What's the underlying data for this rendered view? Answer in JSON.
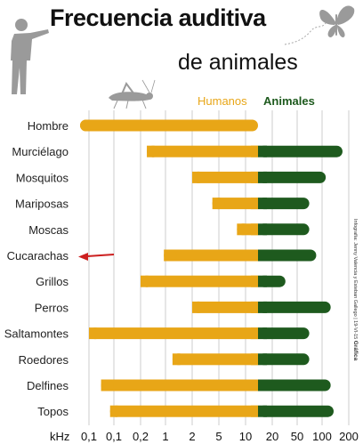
{
  "title": "Frecuencia auditiva",
  "subtitle": "de animales",
  "credit": "Infografía: Jenny Valencia y Esteban Gallego | 19-VI-15",
  "credit_brand": "Gráfica",
  "colors": {
    "humans": "#e8a617",
    "animals": "#1e5a1e",
    "grid": "#cccccc",
    "arrow": "#cc1f1f"
  },
  "icons": [
    "silhouette-man-icon",
    "butterfly-icon",
    "grasshopper-icon",
    "red-arrow-icon"
  ],
  "chart_data": {
    "type": "bar",
    "orientation": "horizontal",
    "xlabel_unit": "kHz",
    "x_ticks": [
      "0,1",
      "0,1",
      "0,2",
      "1",
      "2",
      "5",
      "10",
      "20",
      "50",
      "100",
      "200"
    ],
    "legend": [
      "Humanos",
      "Animales"
    ],
    "legend_position": "top-right",
    "grid": true,
    "highlighted_category": "Cucarachas",
    "categories": [
      "Hombre",
      "Murciélago",
      "Mosquitos",
      "Mariposas",
      "Moscas",
      "Cucarachas",
      "Grillos",
      "Perros",
      "Saltamontes",
      "Roedores",
      "Delfines",
      "Topos"
    ],
    "series": [
      {
        "name": "Humanos",
        "ranges": [
          [
            0.02,
            20
          ],
          [
            0.3,
            20
          ],
          [
            2,
            20
          ],
          [
            4,
            20
          ],
          [
            8,
            20
          ],
          [
            0.9,
            20
          ],
          [
            0.2,
            20
          ],
          [
            2,
            20
          ],
          [
            0.05,
            20
          ],
          [
            1.2,
            20
          ],
          [
            0.07,
            20
          ],
          [
            0.09,
            20
          ]
        ]
      },
      {
        "name": "Animales",
        "ranges": [
          null,
          [
            20,
            170
          ],
          [
            20,
            110
          ],
          [
            20,
            70
          ],
          [
            20,
            70
          ],
          [
            20,
            85
          ],
          [
            20,
            38
          ],
          [
            20,
            125
          ],
          [
            20,
            70
          ],
          [
            20,
            70
          ],
          [
            20,
            125
          ],
          [
            20,
            135
          ]
        ]
      }
    ]
  }
}
